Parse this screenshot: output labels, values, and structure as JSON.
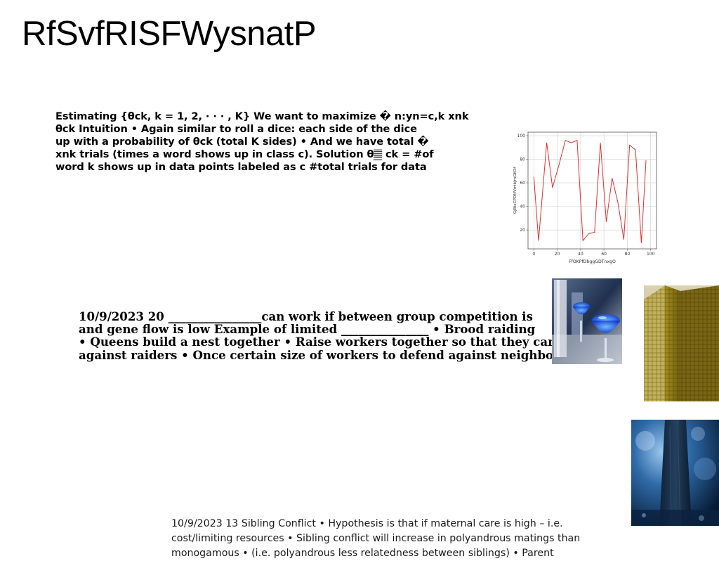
{
  "title": "RfSvfRISFWysnatP",
  "block1": {
    "lines": [
      "Estimating {θck, k = 1, 2, · · · , K} We want to maximize � n:yn=c,k xnk",
      "θck Intuition • Again similar to roll a dice: each side of the dice",
      "up with a probability of θck (total K sides) • And we have total �",
      "xnk trials (times a word shows up in class c). Solution θ𝄛 ck = #of",
      "word k shows up in data points labeled as c #total trials for data"
    ]
  },
  "block2": {
    "lines": [
      "10/9/2023 20 ________________can work if between group competition is",
      "and gene flow is low Example of limited _______________ • Brood raiding",
      "• Queens build a nest together • Raise workers together so that they can",
      "against raiders • Once certain size of workers to defend against neighbors"
    ]
  },
  "block3": {
    "lines": [
      "10/9/2023 13 Sibling Conflict • Hypothesis is that if maternal care is high – i.e.",
      "cost/limiting resources • Sibling conflict will increase in polyandrous matings than",
      "monogamous • (i.e. polyandrous less relatedness between siblings) • Parent"
    ]
  },
  "chart_data": {
    "type": "line",
    "x": [
      0,
      4,
      11,
      16,
      22,
      27,
      32,
      37,
      42,
      47,
      52,
      57,
      62,
      67,
      72,
      77,
      82,
      87,
      92,
      96
    ],
    "values": [
      65,
      11,
      94,
      56,
      77,
      96,
      94,
      96,
      11,
      17,
      18,
      94,
      27,
      64,
      43,
      12,
      92,
      88,
      9,
      79
    ],
    "xlabel": "FfOKPfDbggGDTnxgO",
    "ylabel": "GjBtsCPDMVrrtbJmGKOf",
    "xlim": [
      -5,
      105
    ],
    "ylim": [
      4,
      103
    ],
    "xticks": [
      0,
      20,
      40,
      60,
      80,
      100
    ],
    "yticks": [
      20,
      40,
      60,
      80,
      100
    ],
    "grid": true,
    "color": "#e03030"
  },
  "images": [
    {
      "name": "cocktail-glasses-photo"
    },
    {
      "name": "gold-building-photo"
    },
    {
      "name": "tree-trunk-photo"
    }
  ]
}
